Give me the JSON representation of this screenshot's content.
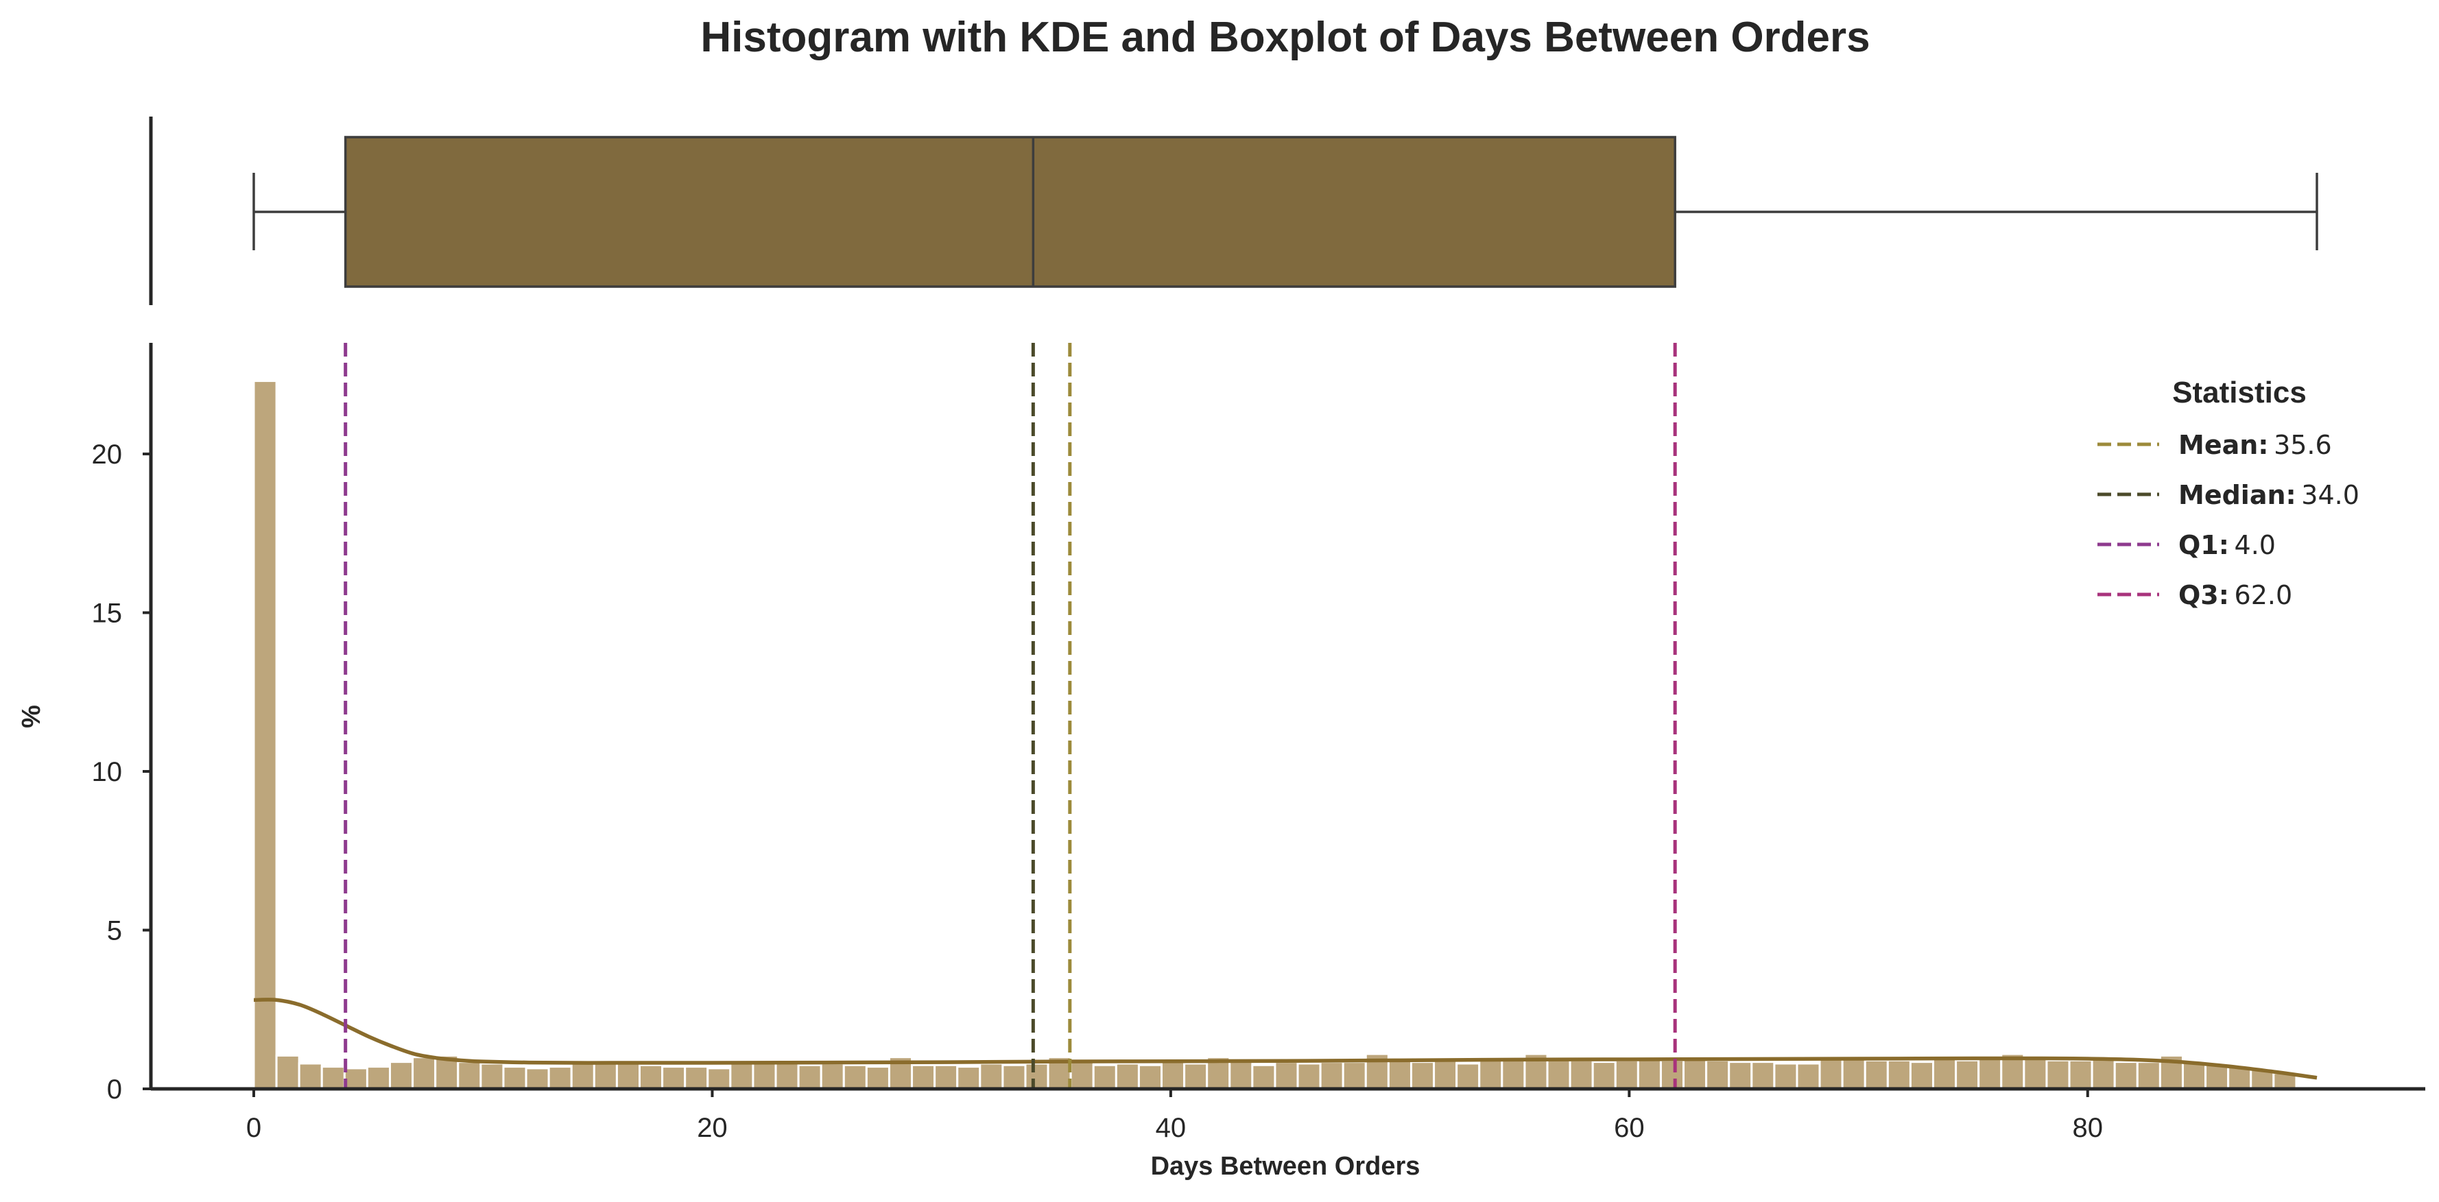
{
  "chart_data": {
    "type": "histogram",
    "title": "Histogram with KDE and Boxplot of Days Between Orders",
    "xlabel": "Days Between Orders",
    "ylabel": "%",
    "xlim": [
      -7.5,
      94
    ],
    "ylim": [
      0,
      23.5
    ],
    "x_ticks": [
      0,
      20,
      40,
      60,
      80
    ],
    "y_ticks": [
      0,
      5,
      10,
      15,
      20
    ],
    "grid": false,
    "bin_width": 0.99,
    "bin_start": 0,
    "histogram_percent": [
      22.3,
      1.05,
      0.8,
      0.7,
      0.65,
      0.7,
      0.85,
      1.0,
      1.05,
      0.85,
      0.8,
      0.7,
      0.65,
      0.7,
      0.85,
      0.9,
      0.8,
      0.75,
      0.7,
      0.7,
      0.65,
      0.85,
      0.85,
      0.8,
      0.75,
      0.8,
      0.75,
      0.7,
      1.0,
      0.75,
      0.75,
      0.7,
      0.8,
      0.75,
      0.8,
      1.0,
      0.85,
      0.75,
      0.8,
      0.75,
      0.85,
      0.8,
      1.0,
      0.9,
      0.75,
      0.85,
      0.8,
      0.85,
      0.85,
      1.1,
      0.95,
      0.85,
      0.9,
      0.8,
      0.9,
      0.95,
      1.1,
      0.95,
      0.9,
      0.85,
      0.9,
      0.95,
      0.9,
      1.0,
      0.9,
      0.85,
      0.85,
      0.8,
      0.8,
      0.95,
      1.0,
      0.9,
      0.9,
      0.85,
      0.95,
      0.9,
      0.95,
      1.1,
      0.95,
      0.9,
      0.9,
      0.95,
      0.85,
      0.85,
      1.05,
      0.85,
      0.75,
      0.7,
      0.6,
      0.5
    ],
    "kde_x": [
      0,
      1,
      2,
      3,
      4,
      5,
      6,
      7,
      8,
      9,
      10,
      12,
      14,
      16,
      20,
      25,
      30,
      35,
      40,
      45,
      50,
      55,
      60,
      65,
      70,
      75,
      78,
      80,
      82,
      84,
      86,
      88,
      90
    ],
    "kde_y": [
      2.8,
      2.8,
      2.65,
      2.35,
      2.0,
      1.65,
      1.35,
      1.1,
      0.97,
      0.9,
      0.86,
      0.83,
      0.82,
      0.82,
      0.82,
      0.83,
      0.84,
      0.86,
      0.87,
      0.88,
      0.9,
      0.92,
      0.93,
      0.94,
      0.95,
      0.96,
      0.96,
      0.95,
      0.92,
      0.85,
      0.72,
      0.55,
      0.35
    ],
    "boxplot": {
      "min": 0,
      "q1": 4.0,
      "median": 34.0,
      "q3": 62.0,
      "max": 90
    },
    "reference_lines": [
      {
        "label": "Mean",
        "value": 35.6,
        "color": "#9c8a3a"
      },
      {
        "label": "Median",
        "value": 34.0,
        "color": "#4b4a2a"
      },
      {
        "label": "Q1",
        "value": 4.0,
        "color": "#8e3a8e"
      },
      {
        "label": "Q3",
        "value": 62.0,
        "color": "#a8337c"
      }
    ],
    "legend": {
      "title": "Statistics",
      "placement": "top-right",
      "entries": [
        {
          "key": "Mean",
          "sep": ":",
          "value": "35.6"
        },
        {
          "key": "Median",
          "sep": ":",
          "value": "34.0"
        },
        {
          "key": "Q1",
          "sep": ":",
          "value": "4.0"
        },
        {
          "key": "Q3",
          "sep": ":",
          "value": "62.0"
        }
      ]
    },
    "colors": {
      "box_fill": "#806a3e",
      "hist_fill": "#bda67c",
      "kde_line": "#8a6c2c",
      "axis": "#262626"
    }
  }
}
